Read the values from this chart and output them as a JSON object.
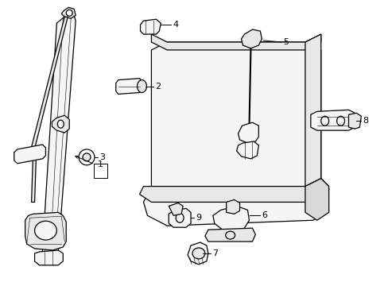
{
  "bg_color": "#ffffff",
  "line_color": "#000000",
  "fill_light": "#f5f5f5",
  "fill_mid": "#e8e8e8",
  "fill_dark": "#d0d0d0"
}
